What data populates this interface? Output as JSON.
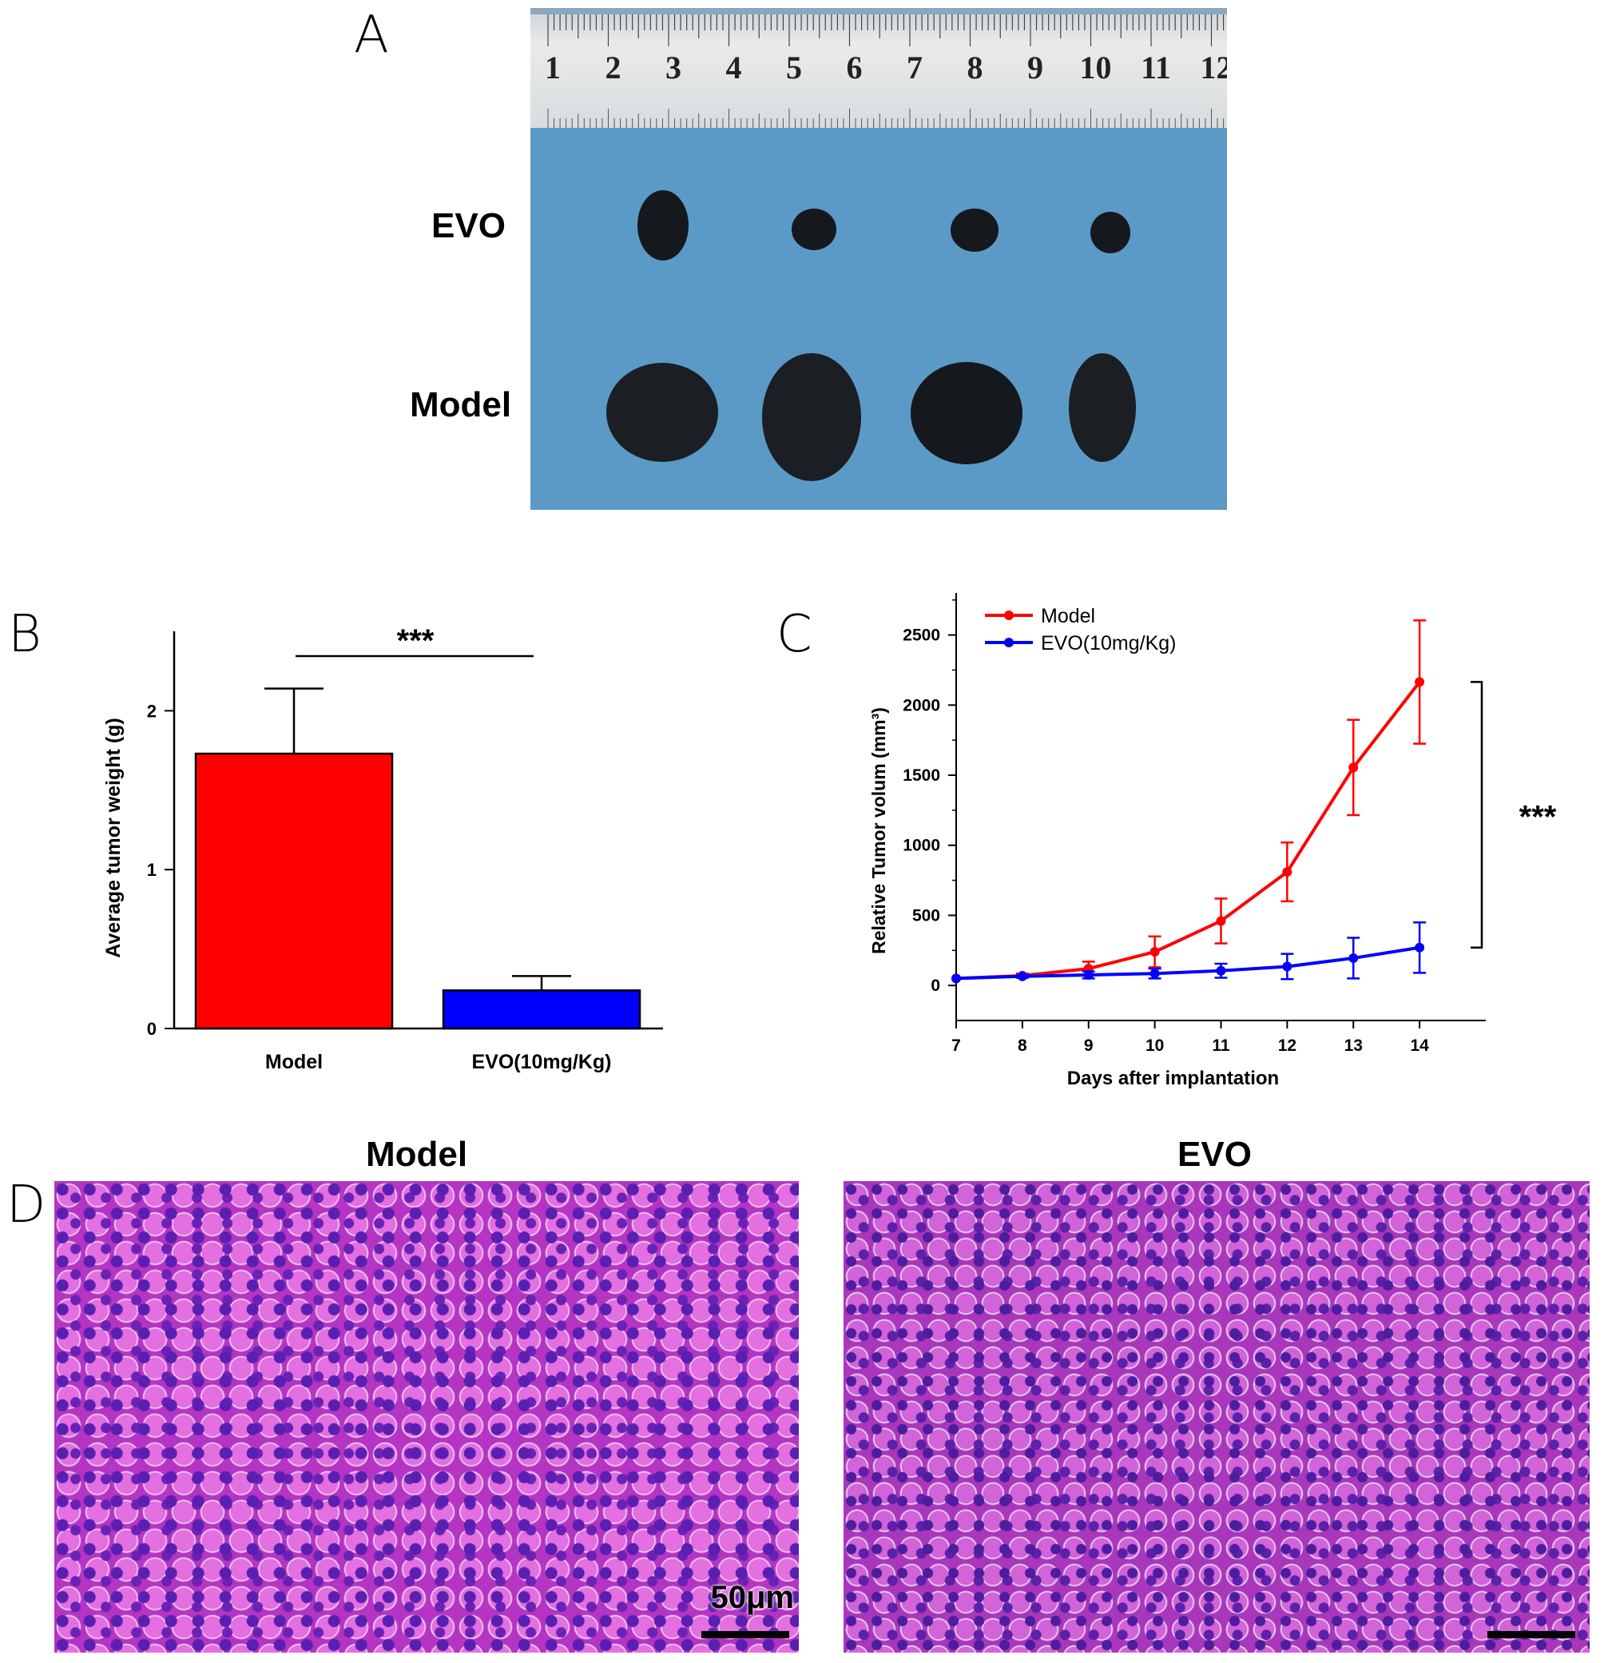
{
  "panels": {
    "A": {
      "letter": "A",
      "row_labels": [
        "EVO",
        "Model"
      ],
      "ruler_numbers": [
        "1",
        "2",
        "3",
        "4",
        "5",
        "6",
        "7",
        "8",
        "9",
        "10",
        "11",
        "12"
      ]
    },
    "B": {
      "letter": "B"
    },
    "C": {
      "letter": "C"
    },
    "D": {
      "letter": "D",
      "titles": [
        "Model",
        "EVO"
      ],
      "scale_bar_label": "50μm"
    }
  },
  "colors": {
    "model": "#ff0000",
    "evo": "#0000ff",
    "photo_bg": "#5b9ac6",
    "tissue": "#c43cc8"
  },
  "chart_data": [
    {
      "type": "bar",
      "panel": "B",
      "categories": [
        "Model",
        "EVO(10mg/Kg)"
      ],
      "values": [
        1.73,
        0.24
      ],
      "errors": [
        0.41,
        0.09
      ],
      "colors": [
        "#ff0000",
        "#0000ff"
      ],
      "ylabel": "Average tumor weight (g)",
      "xlabel": "",
      "ylim": [
        0,
        2.5
      ],
      "yticks": [
        "0",
        "1",
        "2"
      ],
      "significance": "***"
    },
    {
      "type": "line",
      "panel": "C",
      "x": [
        7,
        8,
        9,
        10,
        11,
        12,
        13,
        14
      ],
      "xlabel": "Days after implantation",
      "ylabel": "Relative Tumor volum (mm³)",
      "xlim": [
        7,
        15
      ],
      "ylim": [
        -250,
        2800
      ],
      "yticks": [
        "0",
        "500",
        "1000",
        "1500",
        "2000",
        "2500"
      ],
      "xticks": [
        "7",
        "8",
        "9",
        "10",
        "11",
        "12",
        "13",
        "14"
      ],
      "legend_position": "top-left",
      "significance": "***",
      "series": [
        {
          "name": "Model",
          "color": "#ff0000",
          "values": [
            50,
            70,
            120,
            240,
            460,
            810,
            1555,
            2165
          ],
          "errors": [
            0,
            15,
            50,
            110,
            160,
            210,
            340,
            440
          ]
        },
        {
          "name": "EVO(10mg/Kg)",
          "color": "#0000ff",
          "values": [
            50,
            65,
            75,
            85,
            105,
            135,
            195,
            270
          ],
          "errors": [
            0,
            10,
            25,
            35,
            50,
            90,
            145,
            180
          ]
        }
      ]
    }
  ]
}
